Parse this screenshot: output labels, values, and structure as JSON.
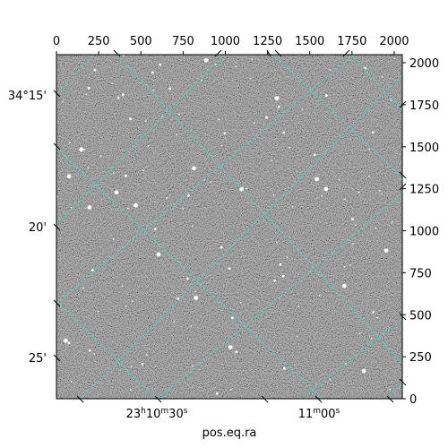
{
  "chart_data": {
    "type": "image",
    "xlabel": "pos.eq.ra",
    "ylabel": "",
    "pixel_axes": {
      "x_range": [
        0,
        2048
      ],
      "y_range": [
        0,
        2048
      ],
      "x_ticks": [
        0,
        250,
        500,
        750,
        1000,
        1250,
        1500,
        1750,
        2000
      ],
      "y_ticks": [
        0,
        250,
        500,
        750,
        1000,
        1250,
        1500,
        1750,
        2000
      ]
    },
    "world_axes": {
      "ra_tick_labels": [
        {
          "h": "23",
          "m": "10",
          "s": "30"
        },
        {
          "h": "",
          "m": "11",
          "s": "00"
        }
      ],
      "dec_tick_labels": [
        "34°15'",
        "20'",
        "25'"
      ]
    },
    "grid": true,
    "grid_color": "#40e0d0"
  }
}
